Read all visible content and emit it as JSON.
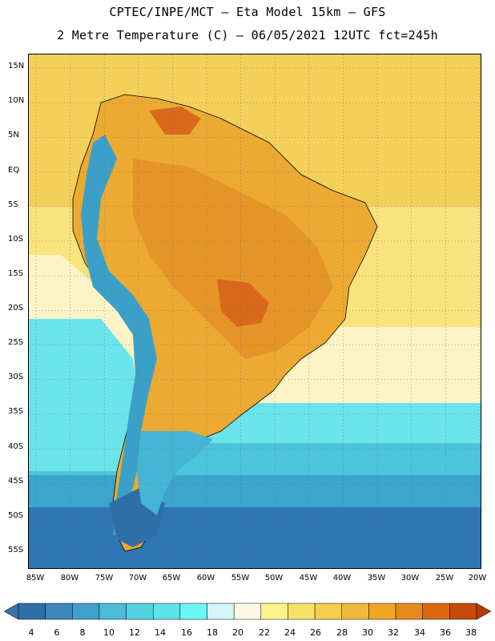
{
  "header": {
    "line1": "CPTEC/INPE/MCT –  Eta Model 15km – GFS",
    "line2": "2 Metre Temperature (C) – 06/05/2021 12UTC fct=245h"
  },
  "axes": {
    "latitudes": [
      "15N",
      "10N",
      "5N",
      "EQ",
      "5S",
      "10S",
      "15S",
      "20S",
      "25S",
      "30S",
      "35S",
      "40S",
      "45S",
      "50S",
      "55S"
    ],
    "longitudes": [
      "85W",
      "80W",
      "75W",
      "70W",
      "65W",
      "60W",
      "55W",
      "50W",
      "45W",
      "40W",
      "35W",
      "30W",
      "25W",
      "20W"
    ]
  },
  "colorbar": {
    "labels": [
      "4",
      "6",
      "8",
      "10",
      "12",
      "14",
      "16",
      "18",
      "20",
      "22",
      "24",
      "26",
      "28",
      "30",
      "32",
      "34",
      "36",
      "38"
    ],
    "colors": [
      "#3a6fa8",
      "#2f6ea7",
      "#3b86bd",
      "#41a0c9",
      "#4bbcd8",
      "#55d2e0",
      "#5ee3ea",
      "#6af7fa",
      "#d5f4fb",
      "#fdf7e6",
      "#fbf48e",
      "#f8e16a",
      "#f4cd51",
      "#f0ba3a",
      "#eda722",
      "#e68a1d",
      "#dc6710",
      "#c54a0c",
      "#b53a0a"
    ]
  },
  "map_colors": {
    "ocean_warm": "#f4d05a",
    "ocean_mid": "#f8e37d",
    "ocean_pale": "#fcf3c7",
    "ocean_cool1": "#6ae3ea",
    "ocean_cool2": "#4cc4dc",
    "ocean_cool3": "#3aa5cd",
    "ocean_cold": "#2e76b4",
    "ocean_coldest": "#2d5fa0",
    "land_hot": "#e59527",
    "land_warm": "#ecaa32",
    "land_very_hot": "#d9691a",
    "andes": "#3ba0c8",
    "andes_cold": "#2e6faa",
    "south_land": "#45b5d5"
  }
}
